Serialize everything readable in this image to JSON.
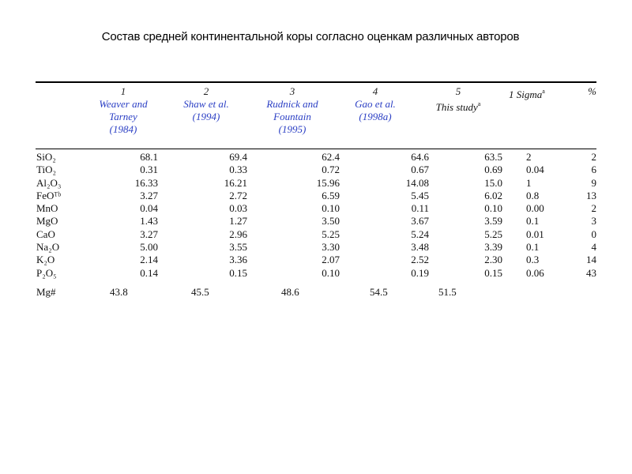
{
  "slide": {
    "title": "Состав средней континентальной коры согласно оценкам различных авторов"
  },
  "table": {
    "columns": [
      {
        "num": "1",
        "author": [
          "Weaver and",
          "Tarney",
          "(1984)"
        ]
      },
      {
        "num": "2",
        "author": [
          "Shaw et al.",
          "(1994)"
        ]
      },
      {
        "num": "3",
        "author": [
          "Rudnick and",
          "Fountain",
          "(1995)"
        ]
      },
      {
        "num": "4",
        "author": [
          "Gao et al.",
          "(1998a)"
        ]
      },
      {
        "num": "5",
        "author": [
          "This study"
        ],
        "sup": "a"
      }
    ],
    "sigma_header": "1 Sigma",
    "sigma_sup": "a",
    "percent_header": "%",
    "rows": [
      {
        "oxide": "SiO₂",
        "values": [
          "68.1",
          "69.4",
          "62.4",
          "64.6",
          "63.5"
        ],
        "sigma": "2",
        "pct": "2"
      },
      {
        "oxide": "TiO₂",
        "values": [
          "0.31",
          "0.33",
          "0.72",
          "0.67",
          "0.69"
        ],
        "sigma": "0.04",
        "pct": "6"
      },
      {
        "oxide": "Al₂O₃",
        "values": [
          "16.33",
          "16.21",
          "15.96",
          "14.08",
          "15.0"
        ],
        "sigma": "1",
        "pct": "9"
      },
      {
        "oxide": "FeOᵀᵇ",
        "values": [
          "3.27",
          "2.72",
          "6.59",
          "5.45",
          "6.02"
        ],
        "sigma": "0.8",
        "pct": "13"
      },
      {
        "oxide": "MnO",
        "values": [
          "0.04",
          "0.03",
          "0.10",
          "0.11",
          "0.10"
        ],
        "sigma": "0.00",
        "pct": "2"
      },
      {
        "oxide": "MgO",
        "values": [
          "1.43",
          "1.27",
          "3.50",
          "3.67",
          "3.59"
        ],
        "sigma": "0.1",
        "pct": "3"
      },
      {
        "oxide": "CaO",
        "values": [
          "3.27",
          "2.96",
          "5.25",
          "5.24",
          "5.25"
        ],
        "sigma": "0.01",
        "pct": "0"
      },
      {
        "oxide": "Na₂O",
        "values": [
          "5.00",
          "3.55",
          "3.30",
          "3.48",
          "3.39"
        ],
        "sigma": "0.1",
        "pct": "4"
      },
      {
        "oxide": "K₂O",
        "values": [
          "2.14",
          "3.36",
          "2.07",
          "2.52",
          "2.30"
        ],
        "sigma": "0.3",
        "pct": "14"
      },
      {
        "oxide": "P₂O₅",
        "values": [
          "0.14",
          "0.15",
          "0.10",
          "0.19",
          "0.15"
        ],
        "sigma": "0.06",
        "pct": "43"
      }
    ],
    "mg_row": {
      "label": "Mg#",
      "values": [
        "43.8",
        "45.5",
        "48.6",
        "54.5",
        "51.5"
      ]
    }
  }
}
